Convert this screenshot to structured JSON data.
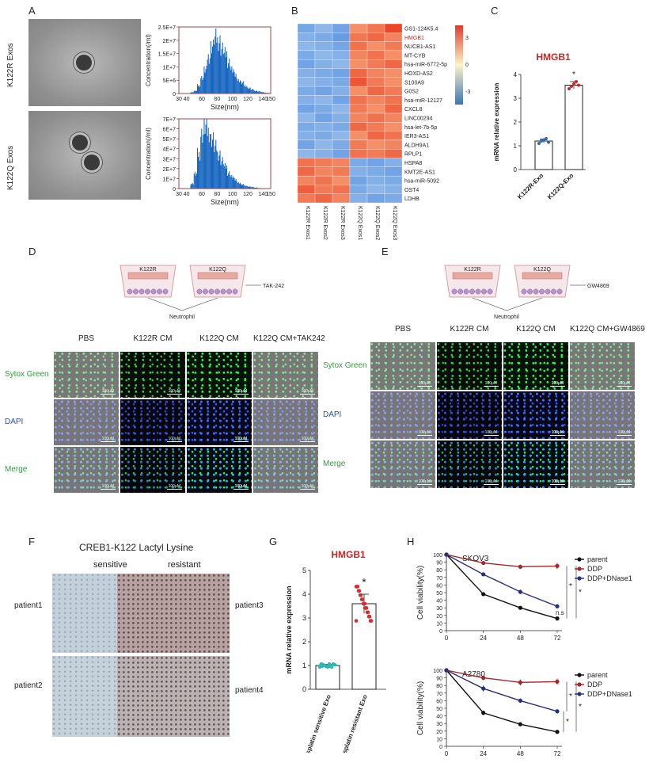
{
  "panels": {
    "A": "A",
    "B": "B",
    "C": "C",
    "D": "D",
    "E": "E",
    "F": "F",
    "G": "G",
    "H": "H"
  },
  "panelA": {
    "row_labels": [
      "K122R Exos",
      "K122Q Exos"
    ],
    "x_label": "Size(nm)",
    "y_label": "Concentration(/ml)",
    "x_ticks": [
      "30",
      "40",
      "60",
      "80",
      "100",
      "120",
      "140",
      "150"
    ],
    "top_y_ticks": [
      "2.5E+7",
      "2E+7",
      "1.5E+7",
      "1E+7",
      "5E+6",
      "0"
    ],
    "bottom_y_ticks": [
      "7E+7",
      "6E+7",
      "5E+7",
      "4E+7",
      "3E+7",
      "2E+7",
      "1E+7",
      "0"
    ],
    "top_peak_values": [
      0.05,
      0.1,
      0.3,
      0.6,
      0.9,
      1.4,
      1.8,
      2.1,
      2.0,
      1.7,
      1.5,
      1.2,
      0.9,
      0.7,
      0.5,
      0.4,
      0.3,
      0.2,
      0.15,
      0.1,
      0.08,
      0.05,
      0.03,
      0.02
    ],
    "bottom_peak_values": [
      0.5,
      1.5,
      3.5,
      5.5,
      6.3,
      5.8,
      5.0,
      4.2,
      3.5,
      2.8,
      2.2,
      1.6,
      1.2,
      0.9,
      0.6,
      0.4,
      0.3,
      0.2,
      0.15,
      0.1,
      0.05,
      0.03,
      0.02,
      0.01
    ]
  },
  "heatmap": {
    "genes": [
      "GS1-124K5.4",
      "HMGB1",
      "NUCB1-AS1",
      "MT-CYB",
      "hsa-miR-6772-5p",
      "HOXD-AS2",
      "S100A9",
      "G0S2",
      "hsa-miR-12127",
      "CXCL8",
      "LINC00294",
      "hsa-let-7b-5p",
      "IER3-AS1",
      "ALDH9A1",
      "RPLP1",
      "HSPA8",
      "KMT2E-AS1",
      "hsa-miR-5092",
      "OST4",
      "LDHB"
    ],
    "samples": [
      "K122R Exos1",
      "K122R Exos2",
      "K122R Exos3",
      "K122Q Exos1",
      "K122Q Exos2",
      "K122Q Exos3"
    ],
    "values": [
      [
        -2.5,
        -2.0,
        -2.6,
        2.0,
        2.5,
        3.5
      ],
      [
        -2.2,
        -2.4,
        -2.8,
        2.5,
        2.8,
        2.2
      ],
      [
        -2.0,
        -2.2,
        -2.5,
        2.6,
        2.0,
        2.4
      ],
      [
        -2.4,
        -2.0,
        -2.2,
        2.2,
        2.6,
        2.0
      ],
      [
        -2.6,
        -2.2,
        -2.0,
        2.0,
        2.4,
        2.8
      ],
      [
        -2.2,
        -2.4,
        -2.6,
        2.8,
        2.2,
        2.0
      ],
      [
        -2.0,
        -2.2,
        -2.4,
        3.2,
        2.4,
        2.0
      ],
      [
        -2.4,
        -2.6,
        -2.2,
        2.0,
        2.8,
        2.4
      ],
      [
        -2.2,
        -2.0,
        -2.6,
        2.6,
        2.2,
        2.6
      ],
      [
        -2.6,
        -2.4,
        -2.0,
        2.4,
        2.0,
        2.8
      ],
      [
        -2.0,
        -2.6,
        -2.2,
        2.2,
        2.6,
        2.2
      ],
      [
        -2.4,
        -2.2,
        -2.4,
        2.8,
        2.4,
        2.0
      ],
      [
        -2.2,
        -2.4,
        -2.0,
        2.0,
        2.8,
        2.6
      ],
      [
        -2.6,
        -2.0,
        -2.4,
        2.4,
        2.0,
        2.2
      ],
      [
        -2.0,
        -2.2,
        -2.6,
        2.6,
        2.4,
        2.8
      ],
      [
        2.6,
        2.4,
        2.2,
        -2.4,
        -2.6,
        -2.2
      ],
      [
        2.8,
        2.2,
        2.4,
        -2.2,
        -2.4,
        -2.6
      ],
      [
        2.2,
        2.6,
        2.0,
        -2.6,
        -2.2,
        -2.4
      ],
      [
        3.0,
        2.4,
        2.6,
        -2.4,
        -2.0,
        -2.2
      ],
      [
        2.4,
        2.8,
        2.2,
        -2.2,
        -2.6,
        -2.4
      ]
    ],
    "legend_ticks": [
      "3",
      "0",
      "-3"
    ],
    "highlight_color": "#c62828"
  },
  "panelC": {
    "title": "HMGB1",
    "ylabel": "mRNA relative expression",
    "categories": [
      "K122R-Exo",
      "K122Q-Exo"
    ],
    "values": [
      1.2,
      3.55
    ],
    "errors": [
      0.08,
      0.15
    ],
    "points": [
      [
        1.1,
        1.2,
        1.25,
        1.3,
        1.15
      ],
      [
        3.4,
        3.5,
        3.6,
        3.7,
        3.55
      ]
    ],
    "ylim": [
      0,
      4
    ],
    "yticks": [
      "0",
      "1",
      "2",
      "3",
      "4"
    ],
    "star": "*"
  },
  "panelD": {
    "schematic": {
      "left": "K122R",
      "right": "K122Q",
      "inhibitor": "TAK-242",
      "cell": "Neutrophil"
    },
    "columns": [
      "PBS",
      "K122R CM",
      "K122Q CM",
      "K122Q CM+TAK242"
    ],
    "rows": [
      "Sytox Green",
      "DAPI",
      "Merge"
    ],
    "scale": "100μM"
  },
  "panelE": {
    "schematic": {
      "left": "K122R",
      "right": "K122Q",
      "inhibitor": "GW4869",
      "cell": "Neutrophil"
    },
    "columns": [
      "PBS",
      "K122R CM",
      "K122Q CM",
      "K122Q CM+GW4869"
    ],
    "rows": [
      "Sytox Green",
      "DAPI",
      "Merge"
    ],
    "scale": "100μM"
  },
  "panelF": {
    "title": "CREB1-K122 Lactyl Lysine",
    "columns": [
      "sensitive",
      "resistant"
    ],
    "left_labels": [
      "patient1",
      "patient2"
    ],
    "right_labels": [
      "patient3",
      "patient4"
    ]
  },
  "panelG": {
    "title": "HMGB1",
    "ylabel": "mRNA relative expression",
    "categories": [
      "Cisplatin sensitive Exo",
      "Cisplatin resistant Exo"
    ],
    "values": [
      1.0,
      3.6
    ],
    "errors": [
      0.05,
      0.4
    ],
    "ylim": [
      0,
      5
    ],
    "yticks": [
      "0",
      "1",
      "2",
      "3",
      "4",
      "5"
    ],
    "star": "*"
  },
  "panelH": {
    "ylabel": "Cell viability(%)",
    "x": [
      0,
      24,
      48,
      72
    ],
    "xticks": [
      "0",
      "24",
      "48",
      "72"
    ],
    "ylim": [
      0,
      100
    ],
    "yticks": [
      "0",
      "10",
      "20",
      "30",
      "40",
      "50",
      "60",
      "70",
      "80",
      "90",
      "100"
    ],
    "ns_label": "n.s",
    "star": "*",
    "charts": [
      {
        "title": "SKOV3",
        "series": [
          {
            "name": "parent",
            "color": "#111111",
            "values": [
              100,
              48,
              30,
              16
            ],
            "err": [
              1,
              2,
              2,
              3
            ]
          },
          {
            "name": "DDP",
            "color": "#a3262b",
            "values": [
              100,
              89,
              84,
              85
            ],
            "err": [
              1,
              2,
              3,
              4
            ]
          },
          {
            "name": "DDP+DNase1",
            "color": "#2b2f7a",
            "values": [
              100,
              74,
              51,
              32
            ],
            "err": [
              1,
              2,
              3,
              3
            ]
          }
        ]
      },
      {
        "title": "A2780",
        "series": [
          {
            "name": "parent",
            "color": "#111111",
            "values": [
              100,
              44,
              29,
              19
            ],
            "err": [
              1,
              3,
              2,
              1
            ]
          },
          {
            "name": "DDP",
            "color": "#a3262b",
            "values": [
              100,
              90,
              84,
              85
            ],
            "err": [
              1,
              3,
              4,
              4
            ]
          },
          {
            "name": "DDP+DNase1",
            "color": "#2b2f7a",
            "values": [
              100,
              76,
              60,
              46
            ],
            "err": [
              1,
              4,
              3,
              3
            ]
          }
        ]
      }
    ]
  }
}
